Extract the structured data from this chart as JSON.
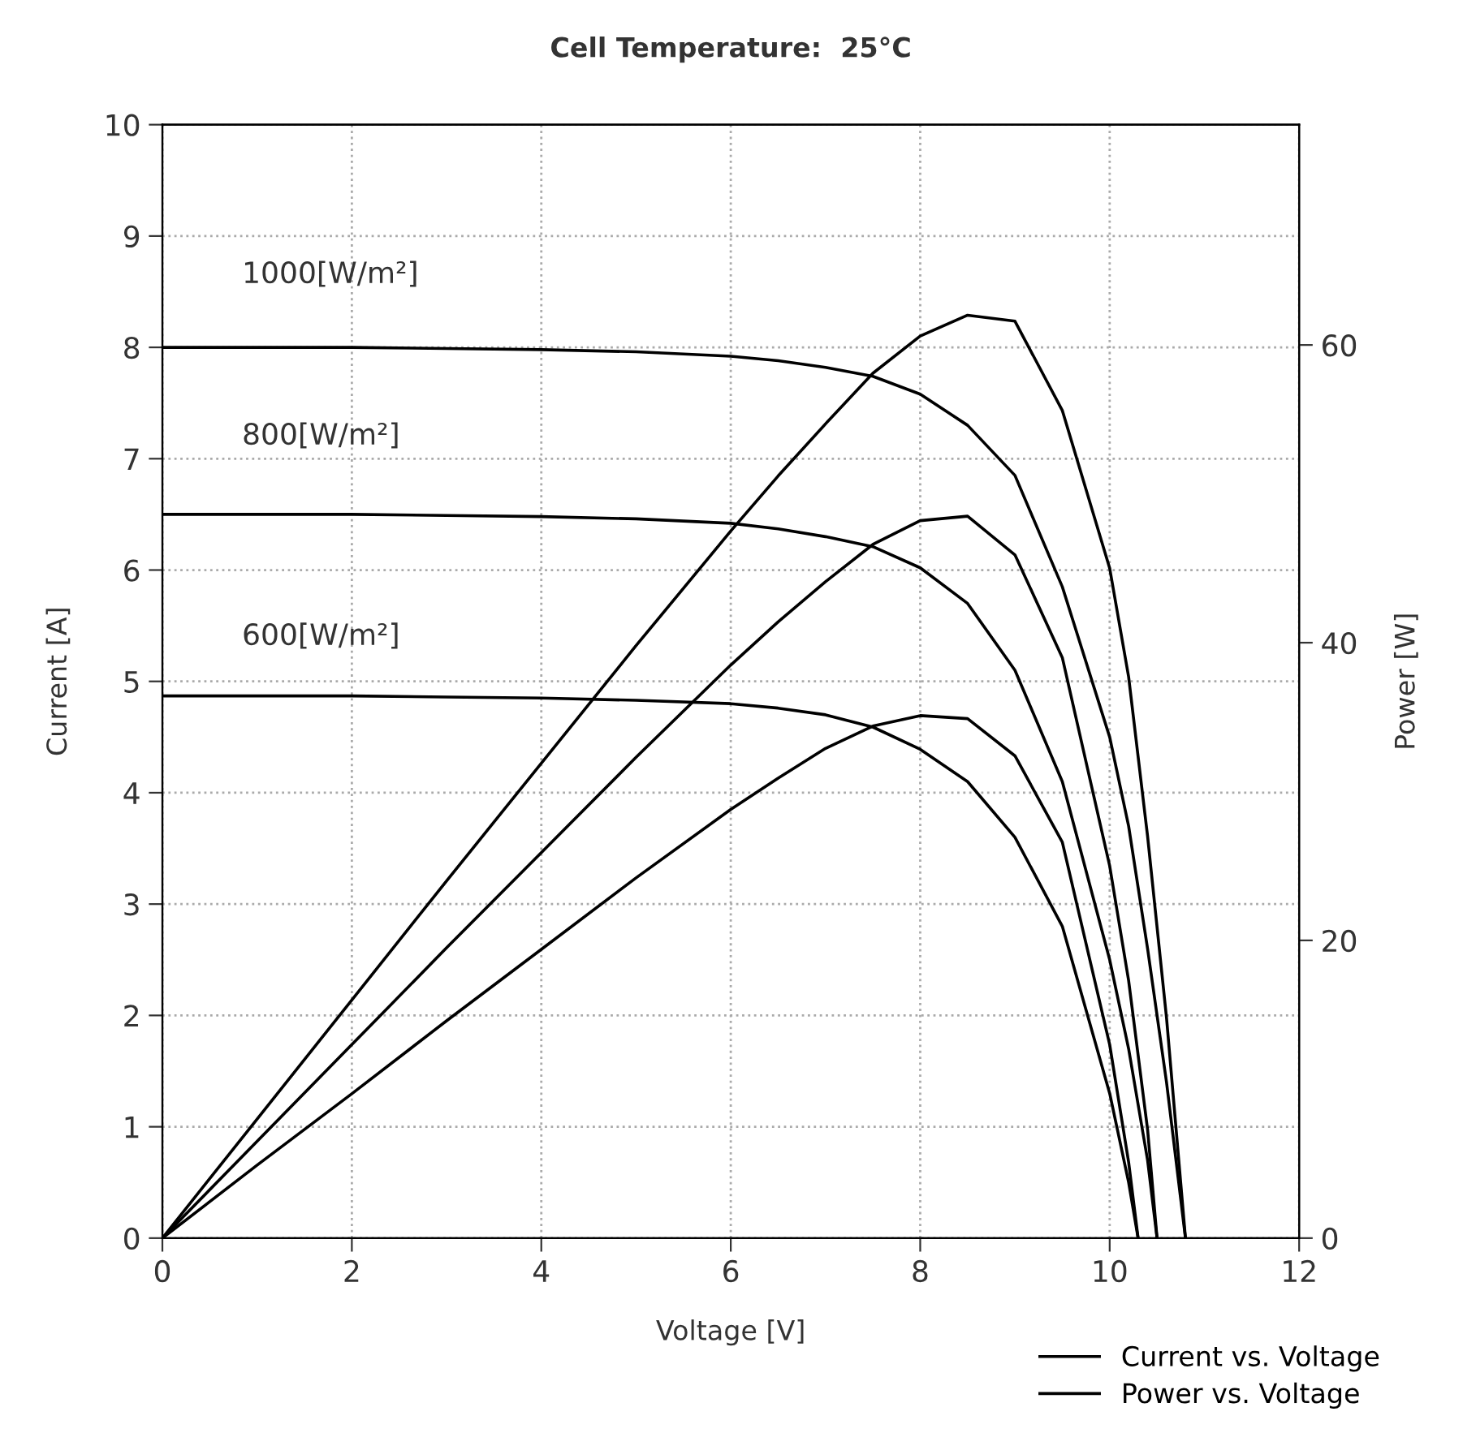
{
  "chart_data": {
    "type": "line",
    "title": "Cell Temperature:  25°C",
    "xlabel": "Voltage [V]",
    "ylabel": "Current [A]",
    "y2label": "Power [W]",
    "xlim": [
      0,
      12
    ],
    "xticks": [
      0,
      2,
      4,
      6,
      8,
      10,
      12
    ],
    "ylim": [
      0,
      10
    ],
    "yticks": [
      0,
      1,
      2,
      3,
      4,
      5,
      6,
      7,
      8,
      9,
      10
    ],
    "y2lim": [
      0,
      74.8
    ],
    "y2ticks": [
      0,
      20,
      40,
      60
    ],
    "grid": true,
    "legend": "bottom right",
    "marker": "none",
    "line_style": "solid",
    "annotations": [
      "1000[W/m²]",
      "800[W/m²]",
      "600[W/m²]"
    ],
    "series": [
      {
        "name": "Current vs. Voltage",
        "color": "#000000",
        "x": [
          0,
          1,
          2,
          3,
          4,
          5,
          6,
          6.5,
          7,
          7.5,
          8,
          8.5,
          9,
          9.5,
          10,
          10.2,
          10.4,
          10.6,
          10.8
        ],
        "values": [
          8.0,
          8.0,
          8.0,
          7.99,
          7.98,
          7.96,
          7.92,
          7.88,
          7.82,
          7.74,
          7.58,
          7.3,
          6.85,
          5.85,
          4.5,
          3.7,
          2.6,
          1.4,
          0
        ]
      },
      {
        "color": "#000000",
        "x": [
          0,
          1,
          2,
          3,
          4,
          5,
          6,
          6.5,
          7,
          7.5,
          8,
          8.5,
          9,
          9.5,
          10,
          10.2,
          10.4,
          10.5
        ],
        "values": [
          6.5,
          6.5,
          6.5,
          6.49,
          6.48,
          6.46,
          6.42,
          6.37,
          6.3,
          6.21,
          6.02,
          5.7,
          5.1,
          4.1,
          2.5,
          1.7,
          0.7,
          0
        ]
      },
      {
        "color": "#000000",
        "x": [
          0,
          1,
          2,
          3,
          4,
          5,
          6,
          6.5,
          7,
          7.5,
          8,
          8.5,
          9,
          9.5,
          10,
          10.2,
          10.3
        ],
        "values": [
          4.87,
          4.87,
          4.87,
          4.86,
          4.85,
          4.83,
          4.8,
          4.76,
          4.7,
          4.59,
          4.39,
          4.1,
          3.6,
          2.8,
          1.3,
          0.5,
          0
        ]
      },
      {
        "name": "Power vs. Voltage",
        "color": "#000000",
        "axis": "y2",
        "x": [
          0,
          1,
          2,
          3,
          4,
          5,
          6,
          6.5,
          7,
          7.5,
          8,
          8.5,
          9,
          9.5,
          10,
          10.2,
          10.4,
          10.6,
          10.8
        ],
        "values": [
          0,
          8.0,
          16.0,
          24.0,
          31.9,
          39.8,
          47.5,
          51.2,
          54.7,
          58.1,
          60.6,
          62.0,
          61.6,
          55.6,
          45.0,
          37.7,
          27.0,
          14.8,
          0
        ]
      },
      {
        "color": "#000000",
        "axis": "y2",
        "x": [
          0,
          1,
          2,
          3,
          4,
          5,
          6,
          6.5,
          7,
          7.5,
          8,
          8.5,
          9,
          9.5,
          10,
          10.2,
          10.4,
          10.5
        ],
        "values": [
          0,
          6.5,
          13.0,
          19.5,
          25.9,
          32.3,
          38.5,
          41.4,
          44.1,
          46.6,
          48.2,
          48.5,
          45.9,
          39.0,
          25.0,
          17.3,
          7.3,
          0
        ]
      },
      {
        "color": "#000000",
        "axis": "y2",
        "x": [
          0,
          1,
          2,
          3,
          4,
          5,
          6,
          6.5,
          7,
          7.5,
          8,
          8.5,
          9,
          9.5,
          10,
          10.2,
          10.3
        ],
        "values": [
          0,
          4.9,
          9.7,
          14.6,
          19.4,
          24.2,
          28.8,
          30.9,
          32.9,
          34.4,
          35.1,
          34.9,
          32.4,
          26.6,
          13.0,
          5.1,
          0
        ]
      }
    ]
  }
}
